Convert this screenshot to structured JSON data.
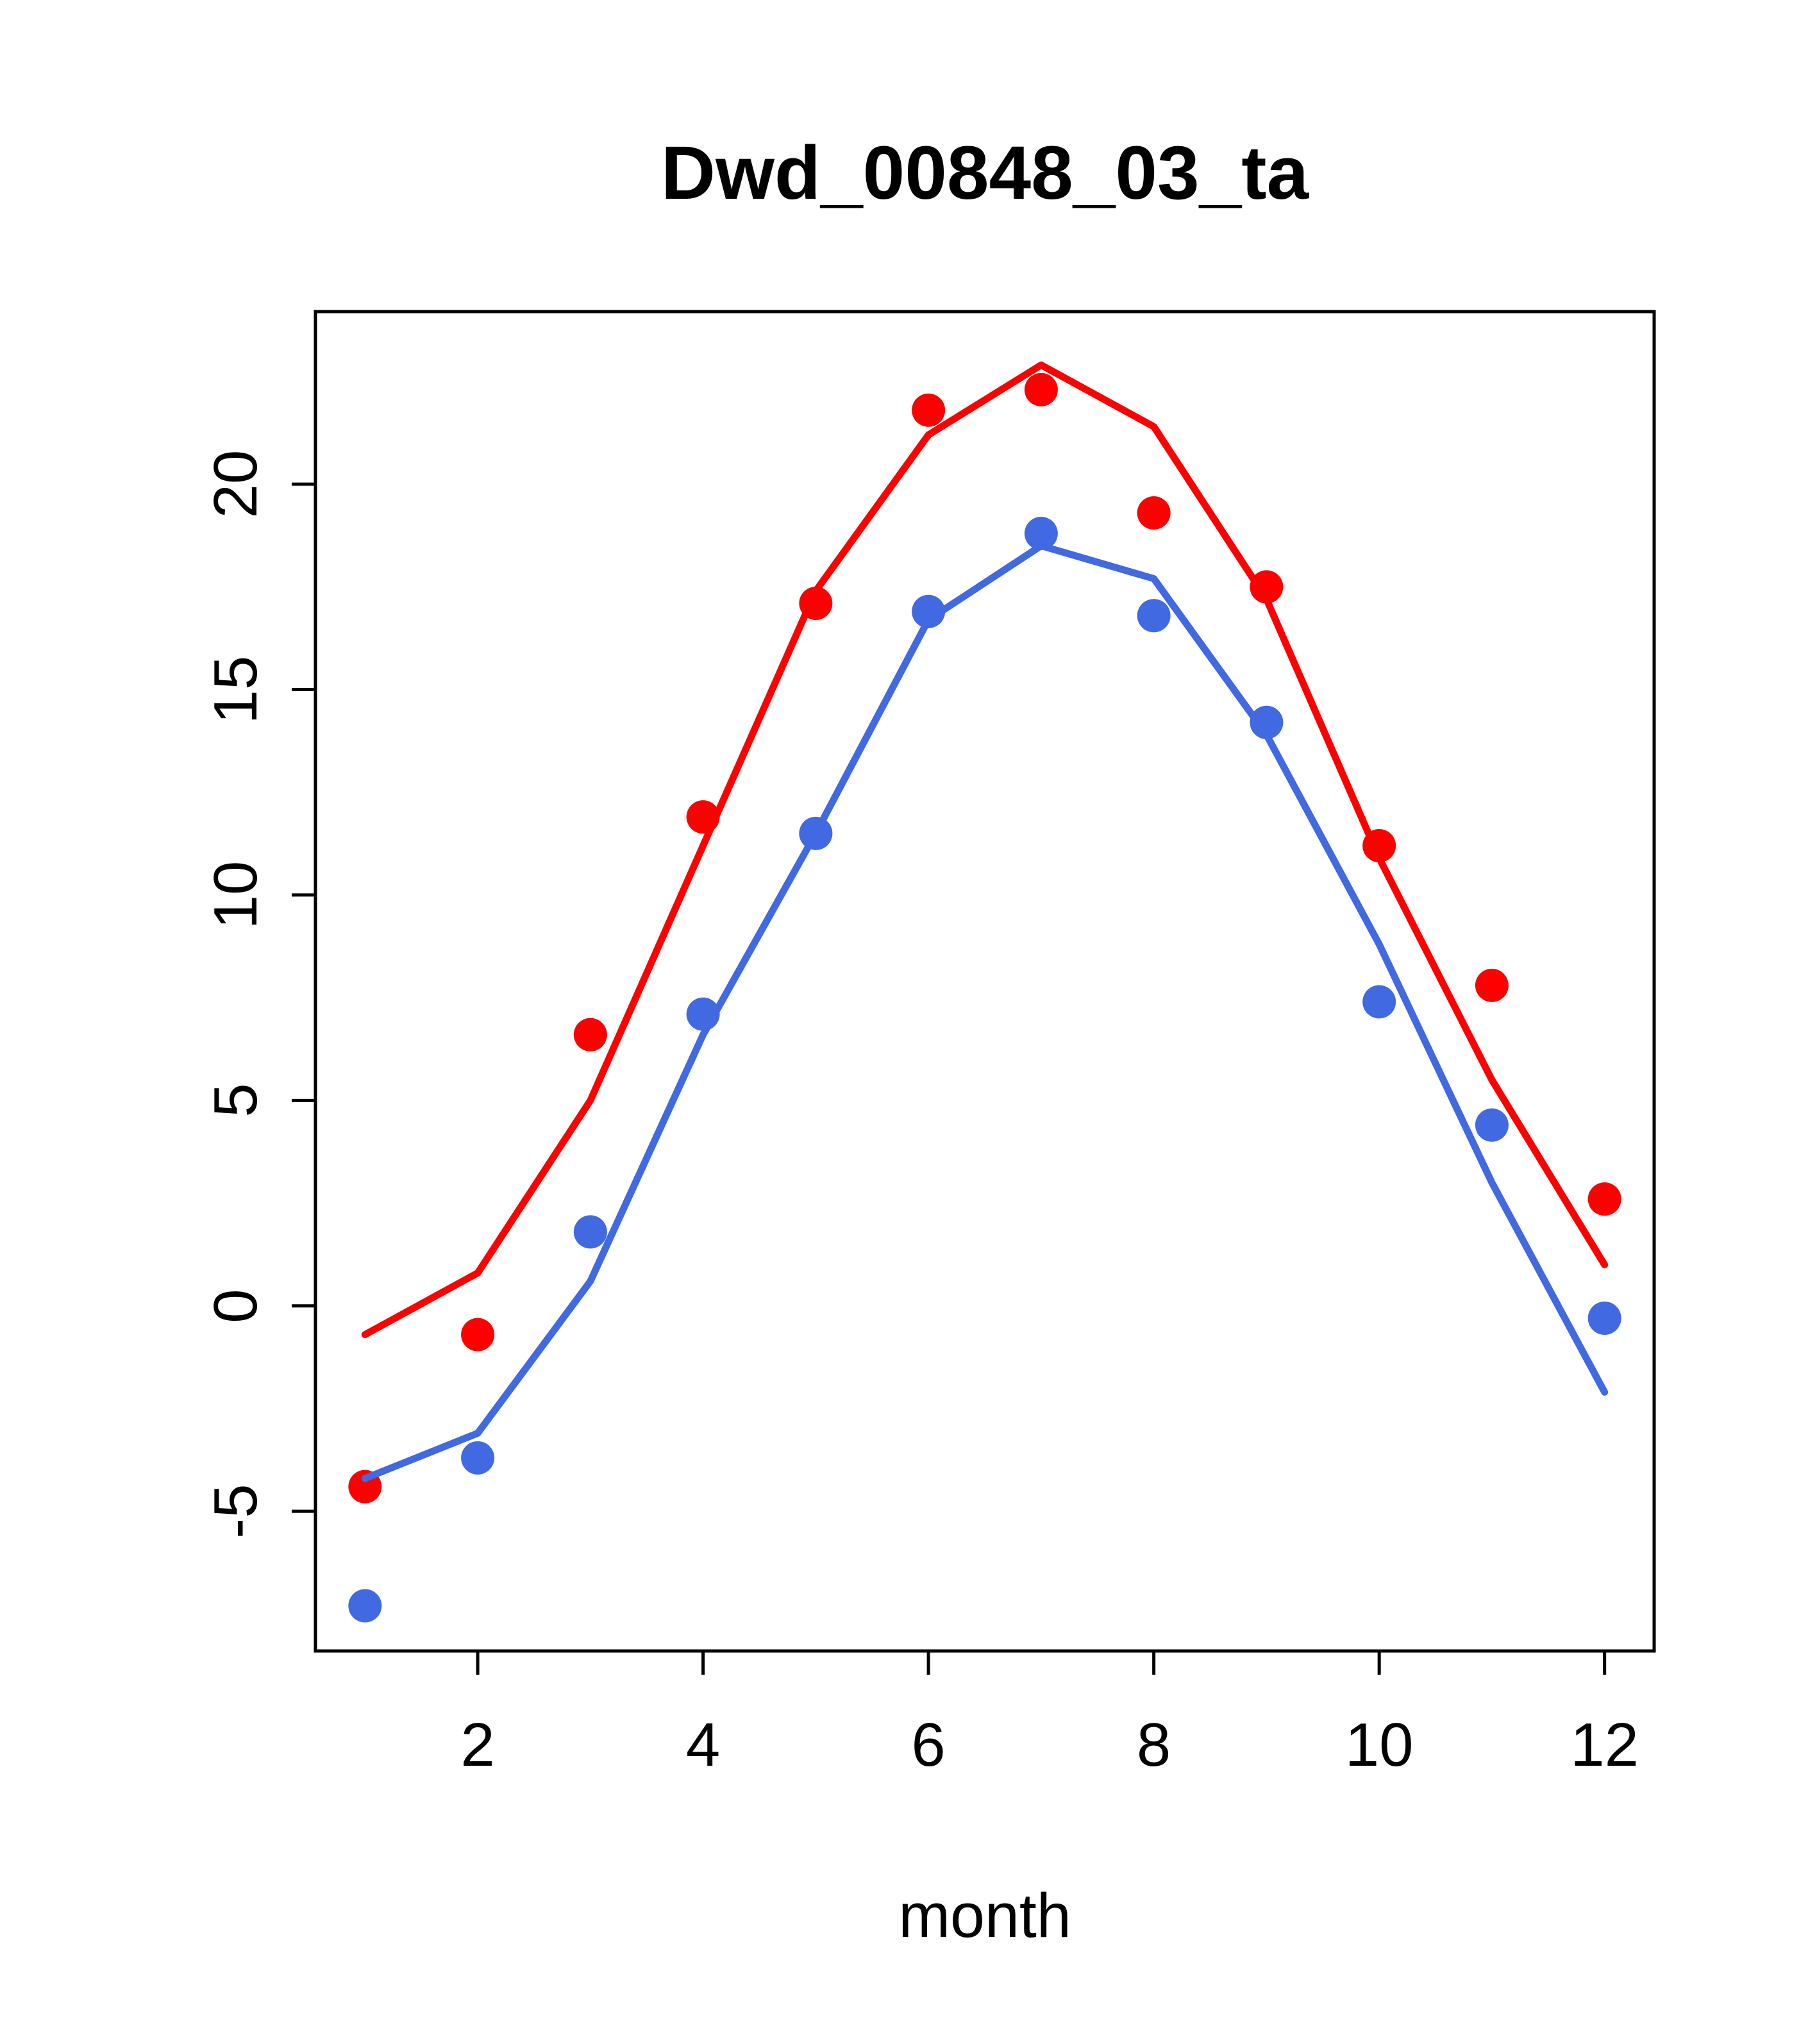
{
  "figure": {
    "title": "Dwd_00848_03_ta",
    "x_axis": {
      "label": "month",
      "tick_labels": [
        "2",
        "4",
        "6",
        "8",
        "10",
        "12"
      ],
      "tick_values": [
        2,
        4,
        6,
        8,
        10,
        12
      ]
    },
    "y_axis": {
      "label": "",
      "tick_labels": [
        "-5",
        "0",
        "5",
        "10",
        "15",
        "20"
      ],
      "tick_values": [
        -5,
        0,
        5,
        10,
        15,
        20
      ]
    }
  },
  "chart_data": {
    "type": "scatter",
    "title": "Dwd_00848_03_ta",
    "xlabel": "month",
    "ylabel": "",
    "x": [
      1,
      2,
      3,
      4,
      5,
      6,
      7,
      8,
      9,
      10,
      11,
      12
    ],
    "xlim": [
      0.56,
      12.44
    ],
    "ylim": [
      -8.4,
      24.2
    ],
    "grid": false,
    "legend_position": "none",
    "colors": {
      "red": "#FF0000",
      "blue": "#4169E1",
      "axis": "#000000"
    },
    "series": [
      {
        "name": "red-line",
        "style": "line",
        "color": "#FF0000",
        "values": [
          -0.7,
          0.8,
          5.0,
          11.2,
          17.4,
          21.2,
          22.9,
          21.4,
          17.2,
          10.9,
          5.5,
          1.0
        ]
      },
      {
        "name": "red-points",
        "style": "points",
        "color": "#FF0000",
        "values": [
          -4.4,
          -0.7,
          6.6,
          11.9,
          17.1,
          21.8,
          22.3,
          19.3,
          17.5,
          11.2,
          7.8,
          2.6
        ]
      },
      {
        "name": "blue-line",
        "style": "line",
        "color": "#4169E1",
        "values": [
          -4.2,
          -3.1,
          0.6,
          6.6,
          11.5,
          16.7,
          18.5,
          17.7,
          13.9,
          8.8,
          3.0,
          -2.1
        ]
      },
      {
        "name": "blue-points",
        "style": "points",
        "color": "#4169E1",
        "values": [
          -7.3,
          -3.7,
          1.8,
          7.1,
          11.5,
          16.9,
          18.8,
          16.8,
          14.2,
          7.4,
          4.4,
          -0.3
        ]
      }
    ]
  }
}
